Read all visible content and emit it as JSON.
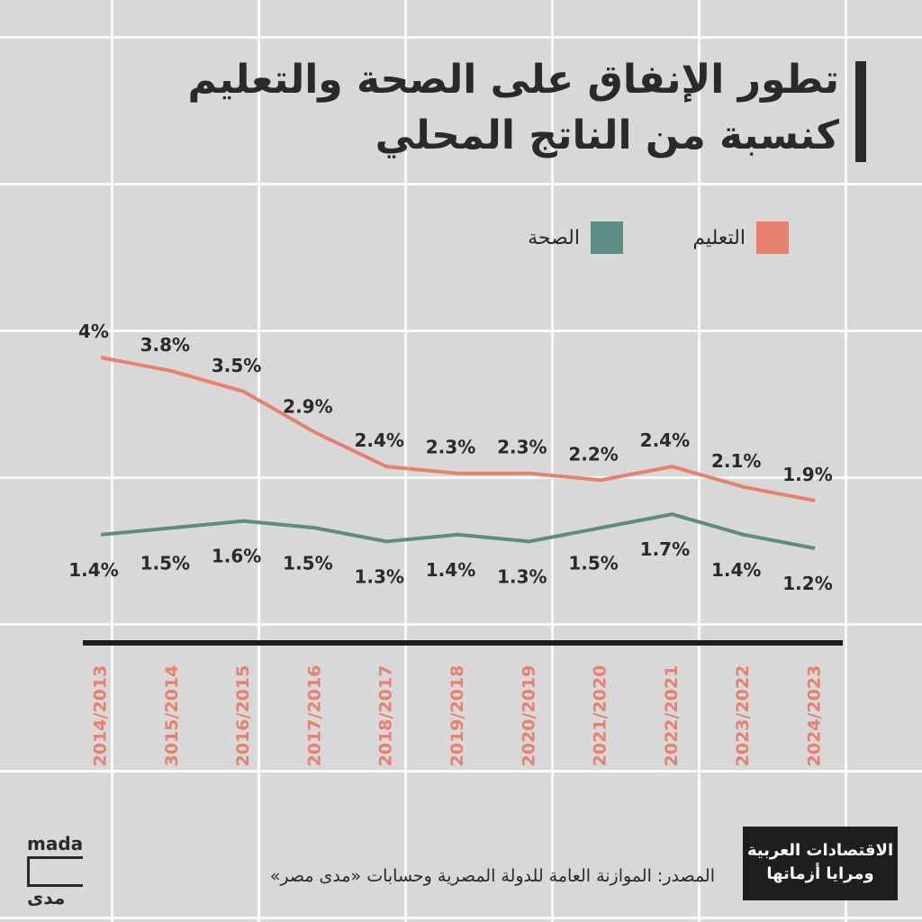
{
  "chart_data": {
    "type": "line",
    "title": "تطور الإنفاق على الصحة والتعليم كنسبة من الناتج المحلي",
    "categories": [
      "2014/2013",
      "3015/2014",
      "2016/2015",
      "2017/2016",
      "2018/2017",
      "2019/2018",
      "2020/2019",
      "2021/2020",
      "2022/2021",
      "2023/2022",
      "2024/2023"
    ],
    "series": [
      {
        "name": "التعليم",
        "color": "#e8806f",
        "values": [
          4,
          3.8,
          3.5,
          2.9,
          2.4,
          2.3,
          2.3,
          2.2,
          2.4,
          2.1,
          1.9
        ],
        "labels": [
          "4%",
          "3.8%",
          "3.5%",
          "2.9%",
          "2.4%",
          "2.3%",
          "2.3%",
          "2.2%",
          "2.4%",
          "2.1%",
          "1.9%"
        ]
      },
      {
        "name": "الصحة",
        "color": "#5e8c85",
        "values": [
          1.4,
          1.5,
          1.6,
          1.5,
          1.3,
          1.4,
          1.3,
          1.5,
          1.7,
          1.4,
          1.2
        ],
        "labels": [
          "1.4%",
          "1.5%",
          "1.6%",
          "1.5%",
          "1.3%",
          "1.4%",
          "1.3%",
          "1.5%",
          "1.7%",
          "1.4%",
          "1.2%"
        ]
      }
    ],
    "legend": "top-right",
    "grid": false
  },
  "footer": {
    "source": "المصدر: الموازنة العامة للدولة المصرية وحسابات «مدى مصر»",
    "logo_text": "mada",
    "logo_arabic": "مدى",
    "badge_line1": "الاقتصادات العربية",
    "badge_line2": "ومرايا أزماتها"
  }
}
